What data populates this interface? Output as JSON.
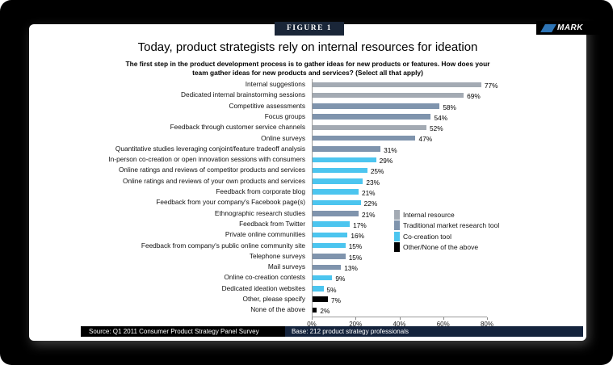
{
  "figure_label": "FIGURE 1",
  "brand_fragment": "MARK",
  "header": {
    "title": "Today, product strategists rely on internal resources for ideation",
    "subtitle_line1": "The first step in the product development process is to gather ideas for new products or features. How does your",
    "subtitle_line2": "team gather ideas for new products and services? (Select all that apply)"
  },
  "footer": {
    "source": "Source: Q1 2011 Consumer Product Strategy Panel Survey",
    "base": "Base: 212 product strategy professionals"
  },
  "colors": {
    "internal": "#a3aab3",
    "traditional": "#7f94ad",
    "cocreation": "#4cc5ef",
    "other": "#000000",
    "figure_box": "#1a2638",
    "accent_blue": "#2e75b6"
  },
  "legend": [
    {
      "label": "Internal resource",
      "category": "internal"
    },
    {
      "label": "Traditional market research tool",
      "category": "traditional"
    },
    {
      "label": "Co-creation tool",
      "category": "cocreation"
    },
    {
      "label": "Other/None of the above",
      "category": "other"
    }
  ],
  "chart_data": {
    "type": "bar",
    "orientation": "horizontal",
    "title": "Today, product strategists rely on internal resources for ideation",
    "question": "The first step in the product development process is to gather ideas for new products or features. How does your team gather ideas for new products and services? (Select all that apply)",
    "xlabel": "",
    "ylabel": "",
    "xlim": [
      0,
      80
    ],
    "x_ticks": [
      "0%",
      "20%",
      "40%",
      "60%",
      "80%"
    ],
    "value_suffix": "%",
    "legend_position": "right",
    "grid": false,
    "rows": [
      {
        "label": "Internal suggestions",
        "value": 77,
        "category": "internal"
      },
      {
        "label": "Dedicated internal brainstorming sessions",
        "value": 69,
        "category": "internal"
      },
      {
        "label": "Competitive assessments",
        "value": 58,
        "category": "traditional"
      },
      {
        "label": "Focus groups",
        "value": 54,
        "category": "traditional"
      },
      {
        "label": "Feedback through customer service channels",
        "value": 52,
        "category": "internal"
      },
      {
        "label": "Online surveys",
        "value": 47,
        "category": "traditional"
      },
      {
        "label": "Quantitative studies leveraging conjoint/feature tradeoff analysis",
        "value": 31,
        "category": "traditional"
      },
      {
        "label": "In-person co-creation or open innovation sessions with consumers",
        "value": 29,
        "category": "cocreation"
      },
      {
        "label": "Online ratings and reviews of competitor products and services",
        "value": 25,
        "category": "cocreation"
      },
      {
        "label": "Online ratings and reviews of your own products and services",
        "value": 23,
        "category": "cocreation"
      },
      {
        "label": "Feedback from corporate blog",
        "value": 21,
        "category": "cocreation"
      },
      {
        "label": "Feedback from your company's Facebook page(s)",
        "value": 22,
        "category": "cocreation"
      },
      {
        "label": "Ethnographic research studies",
        "value": 21,
        "category": "traditional"
      },
      {
        "label": "Feedback from Twitter",
        "value": 17,
        "category": "cocreation"
      },
      {
        "label": "Private online communities",
        "value": 16,
        "category": "cocreation"
      },
      {
        "label": "Feedback from company's public online community site",
        "value": 15,
        "category": "cocreation"
      },
      {
        "label": "Telephone surveys",
        "value": 15,
        "category": "traditional"
      },
      {
        "label": "Mail surveys",
        "value": 13,
        "category": "traditional"
      },
      {
        "label": "Online co-creation contests",
        "value": 9,
        "category": "cocreation"
      },
      {
        "label": "Dedicated ideation websites",
        "value": 5,
        "category": "cocreation"
      },
      {
        "label": "Other, please specify",
        "value": 7,
        "category": "other"
      },
      {
        "label": "None of the above",
        "value": 2,
        "category": "other"
      }
    ]
  }
}
